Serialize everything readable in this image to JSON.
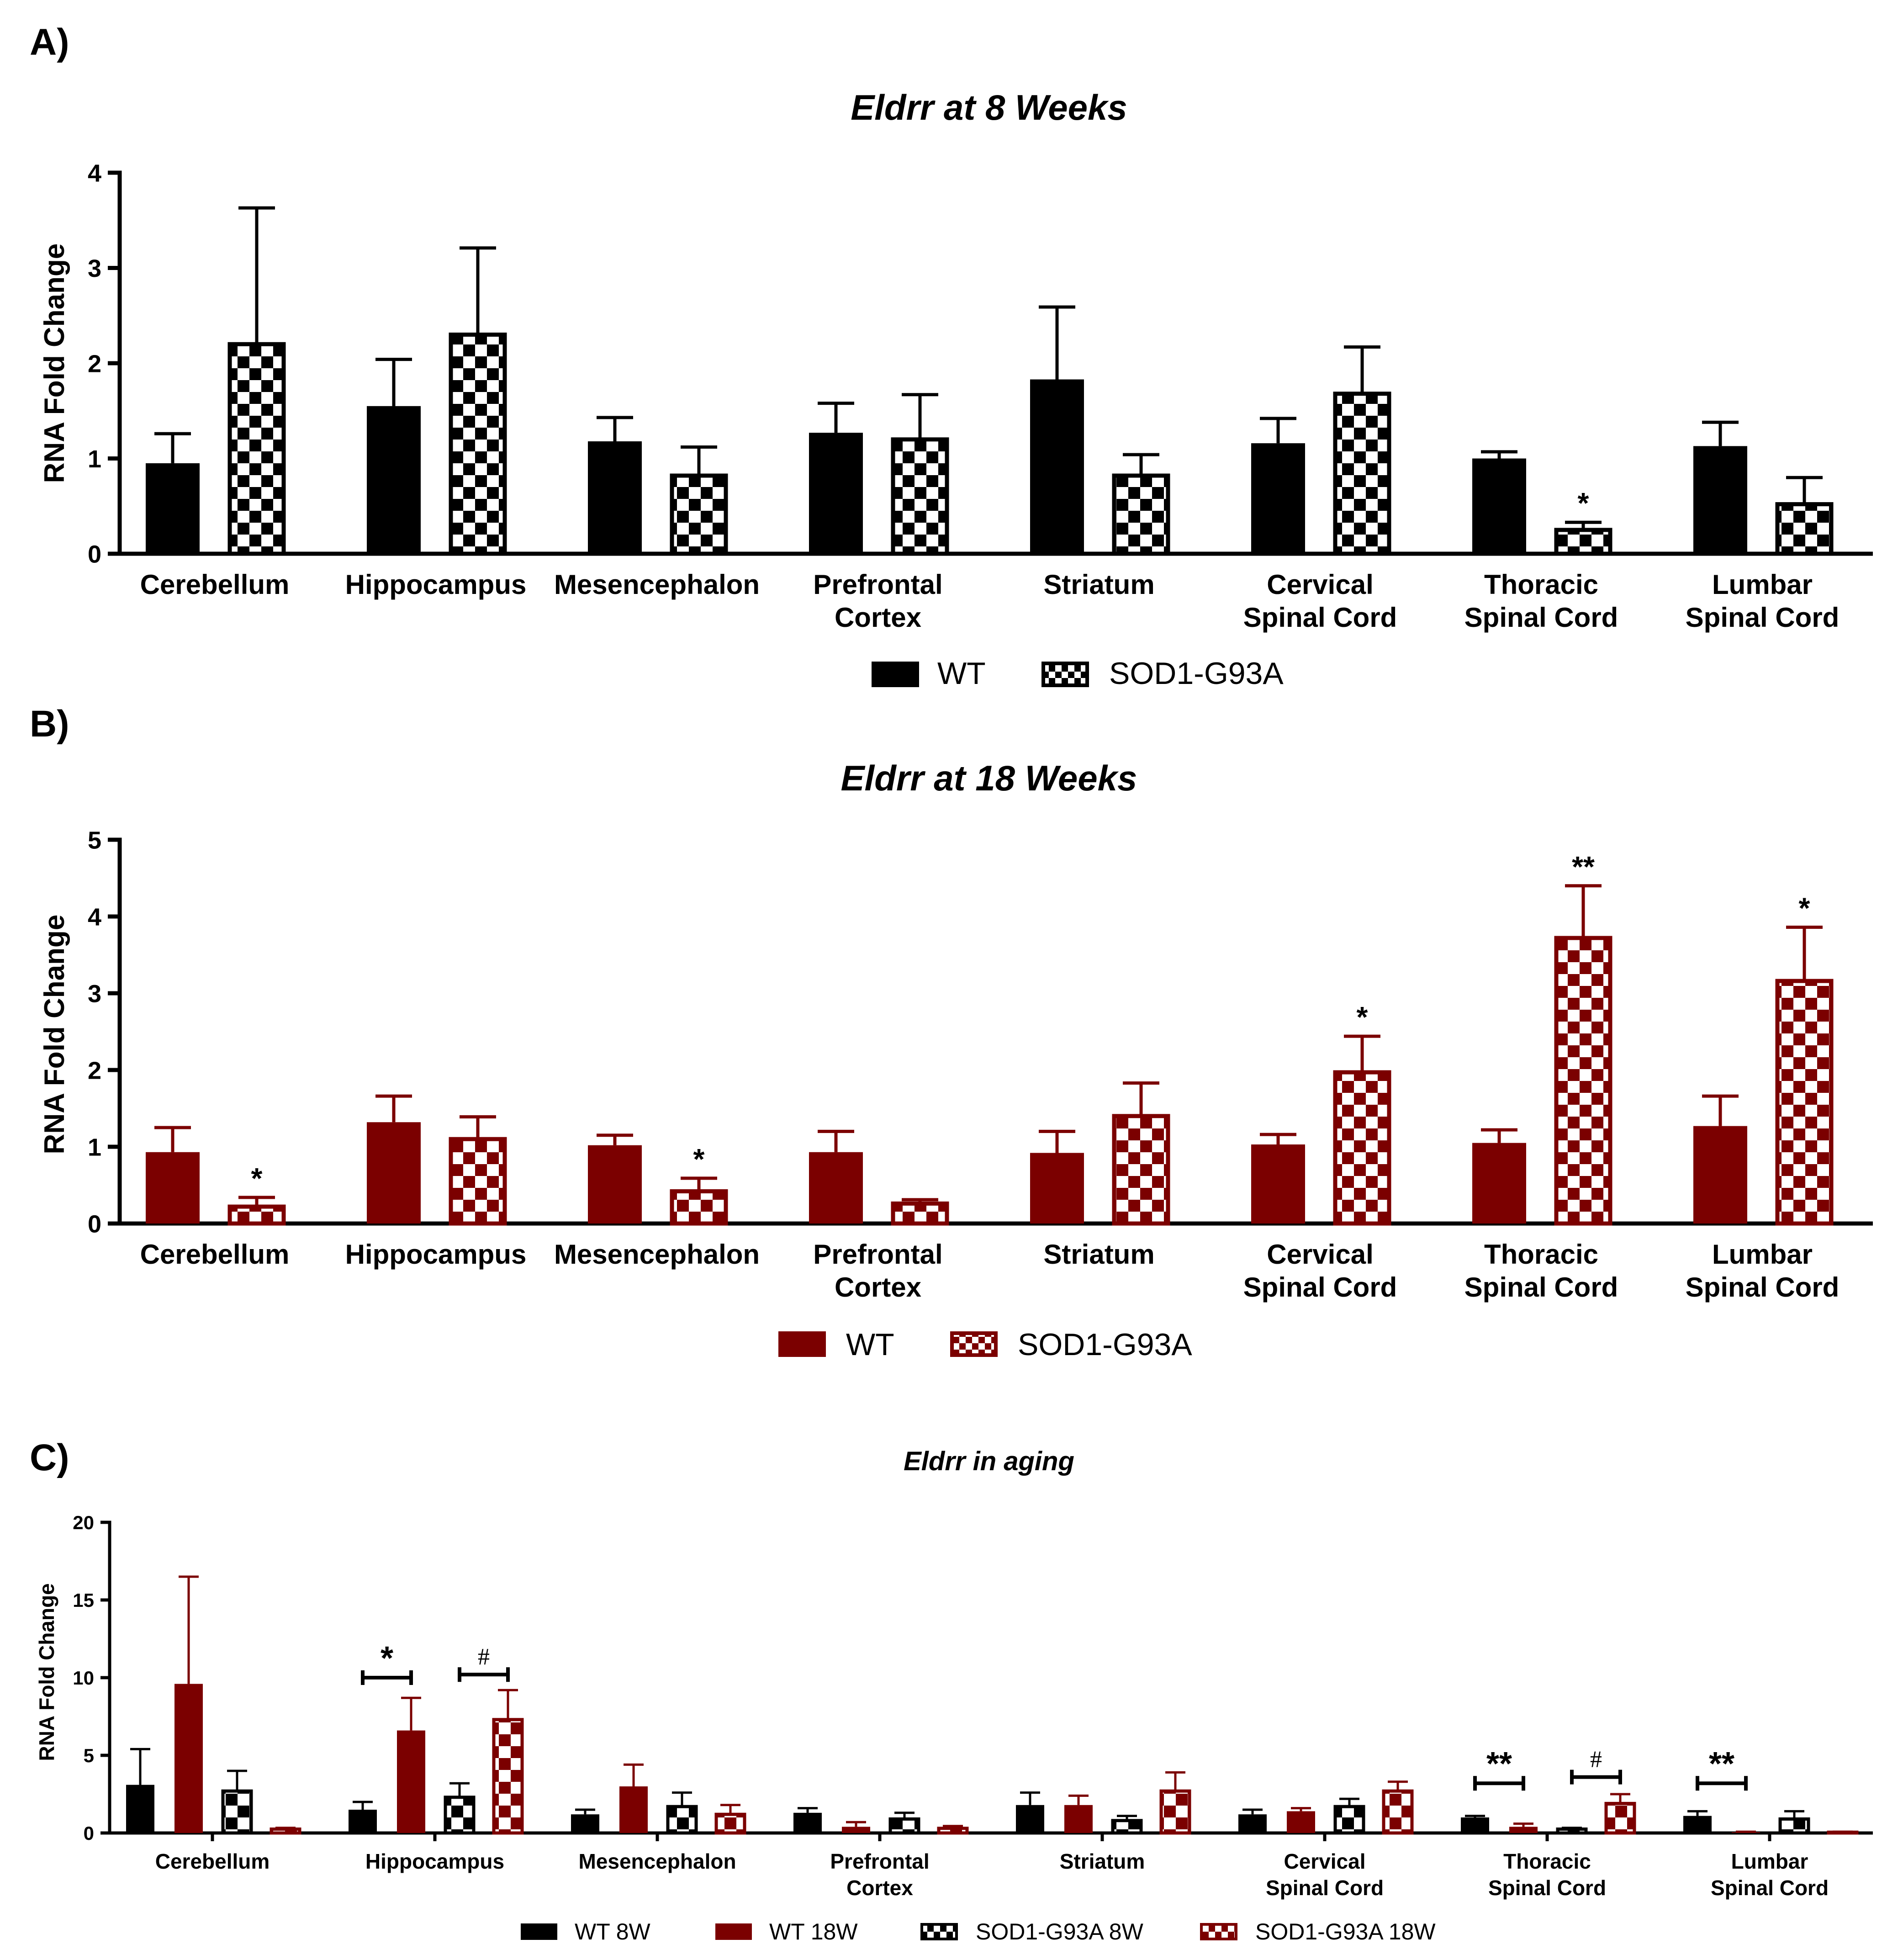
{
  "colors": {
    "black": "#000000",
    "red": "#7b0000",
    "white": "#ffffff"
  },
  "chart_data": [
    {
      "id": "A",
      "panel_label": "A)",
      "type": "bar",
      "title": "Eldrr at 8 Weeks",
      "ylabel": "RNA Fold Change",
      "ylim": [
        0,
        4
      ],
      "yticks": [
        "0",
        "1",
        "2",
        "3",
        "4"
      ],
      "categories": [
        "Cerebellum",
        "Hippocampus",
        "Mesencephalon",
        "Prefrontal|Cortex",
        "Striatum",
        "Cervical|Spinal Cord",
        "Thoracic|Spinal Cord",
        "Lumbar|Spinal Cord"
      ],
      "series": [
        {
          "name": "WT",
          "color": "#000000",
          "pattern": "solid",
          "values": [
            0.95,
            1.55,
            1.18,
            1.27,
            1.83,
            1.16,
            1.0,
            1.13
          ],
          "errors": [
            0.31,
            0.49,
            0.25,
            0.31,
            0.76,
            0.26,
            0.07,
            0.25
          ]
        },
        {
          "name": "SOD1-G93A",
          "color": "#000000",
          "pattern": "checker",
          "values": [
            2.2,
            2.3,
            0.82,
            1.2,
            0.82,
            1.68,
            0.25,
            0.52
          ],
          "errors": [
            1.43,
            0.91,
            0.3,
            0.47,
            0.22,
            0.49,
            0.08,
            0.28
          ]
        }
      ],
      "annotations": [
        {
          "category": 6,
          "series": 1,
          "text": "*"
        }
      ]
    },
    {
      "id": "B",
      "panel_label": "B)",
      "type": "bar",
      "title": "Eldrr at 18 Weeks",
      "ylabel": "RNA Fold Change",
      "ylim": [
        0,
        5
      ],
      "yticks": [
        "0",
        "1",
        "2",
        "3",
        "4",
        "5"
      ],
      "categories": [
        "Cerebellum",
        "Hippocampus",
        "Mesencephalon",
        "Prefrontal|Cortex",
        "Striatum",
        "Cervical|Spinal Cord",
        "Thoracic|Spinal Cord",
        "Lumbar|Spinal Cord"
      ],
      "series": [
        {
          "name": "WT",
          "color": "#7b0000",
          "pattern": "solid",
          "values": [
            0.93,
            1.32,
            1.02,
            0.93,
            0.92,
            1.03,
            1.05,
            1.27
          ],
          "errors": [
            0.32,
            0.34,
            0.13,
            0.27,
            0.28,
            0.13,
            0.17,
            0.39
          ]
        },
        {
          "name": "SOD1-G93A",
          "color": "#7b0000",
          "pattern": "checker",
          "values": [
            0.22,
            1.1,
            0.42,
            0.26,
            1.4,
            1.97,
            3.72,
            3.16
          ],
          "errors": [
            0.12,
            0.29,
            0.17,
            0.05,
            0.43,
            0.47,
            0.68,
            0.7
          ]
        }
      ],
      "annotations": [
        {
          "category": 0,
          "series": 1,
          "text": "*"
        },
        {
          "category": 2,
          "series": 1,
          "text": "*"
        },
        {
          "category": 5,
          "series": 1,
          "text": "*"
        },
        {
          "category": 6,
          "series": 1,
          "text": "**"
        },
        {
          "category": 7,
          "series": 1,
          "text": "*"
        }
      ]
    },
    {
      "id": "C",
      "panel_label": "C)",
      "type": "bar",
      "title": "Eldrr in aging",
      "ylabel": "RNA Fold Change",
      "ylim": [
        0,
        20
      ],
      "yticks": [
        "0",
        "5",
        "10",
        "15",
        "20"
      ],
      "categories": [
        "Cerebellum",
        "Hippocampus",
        "Mesencephalon",
        "Prefrontal|Cortex",
        "Striatum",
        "Cervical|Spinal Cord",
        "Thoracic|Spinal Cord",
        "Lumbar|Spinal Cord"
      ],
      "series": [
        {
          "name": "WT 8W",
          "color": "#000000",
          "pattern": "solid",
          "values": [
            3.1,
            1.5,
            1.2,
            1.3,
            1.8,
            1.2,
            1.0,
            1.1
          ],
          "errors": [
            2.3,
            0.5,
            0.3,
            0.3,
            0.8,
            0.3,
            0.1,
            0.3
          ]
        },
        {
          "name": "WT 18W",
          "color": "#7b0000",
          "pattern": "solid",
          "values": [
            9.6,
            6.6,
            3.0,
            0.4,
            1.8,
            1.4,
            0.4,
            0.05
          ],
          "errors": [
            6.9,
            2.1,
            1.4,
            0.3,
            0.6,
            0.2,
            0.2,
            0.03
          ]
        },
        {
          "name": "SOD1-G93A 8W",
          "color": "#000000",
          "pattern": "checker",
          "values": [
            2.7,
            2.3,
            1.7,
            0.9,
            0.8,
            1.7,
            0.25,
            0.9
          ],
          "errors": [
            1.3,
            0.9,
            0.9,
            0.4,
            0.3,
            0.5,
            0.08,
            0.5
          ]
        },
        {
          "name": "SOD1-G93A 18W",
          "color": "#7b0000",
          "pattern": "checker",
          "values": [
            0.25,
            7.3,
            1.2,
            0.3,
            2.7,
            2.7,
            1.9,
            0.05
          ],
          "errors": [
            0.08,
            1.9,
            0.6,
            0.15,
            1.2,
            0.6,
            0.6,
            0.03
          ]
        }
      ],
      "brackets": [
        {
          "category": 1,
          "from": 0,
          "to": 1,
          "level": 10.0,
          "text": "*"
        },
        {
          "category": 1,
          "from": 2,
          "to": 3,
          "level": 10.2,
          "text": "#"
        },
        {
          "category": 6,
          "from": 0,
          "to": 1,
          "level": 3.2,
          "text": "**"
        },
        {
          "category": 6,
          "from": 2,
          "to": 3,
          "level": 3.6,
          "text": "#"
        },
        {
          "category": 7,
          "from": 0,
          "to": 1,
          "level": 3.2,
          "text": "**"
        }
      ]
    }
  ]
}
